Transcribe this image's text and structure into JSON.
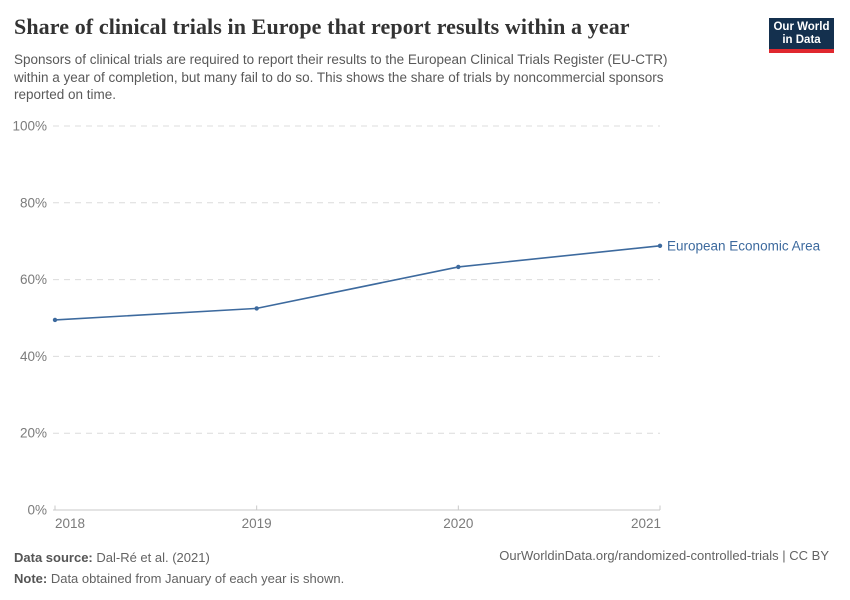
{
  "header": {
    "title": "Share of clinical trials in Europe that report results within a year",
    "subtitle_lines": [
      "Sponsors of clinical trials are required to report their results to the European Clinical Trials Register (EU-CTR)",
      "within a year of completion, but many fail to do so. This shows the share of trials by noncommercial sponsors",
      "reported on time."
    ],
    "logo": {
      "line1": "Our World",
      "line2": "in Data",
      "bg_color": "#14304e",
      "stripe_color": "#e0282e"
    }
  },
  "chart_data": {
    "type": "line",
    "title": "Share of clinical trials in Europe that report results within a year",
    "x": [
      2018,
      2019,
      2020,
      2021
    ],
    "series": [
      {
        "name": "European Economic Area",
        "values": [
          49.5,
          52.5,
          63.3,
          68.8
        ],
        "color": "#3d6a9e"
      }
    ],
    "xlabel": "",
    "ylabel": "",
    "ylim": [
      0,
      100
    ],
    "yticks": [
      0,
      20,
      40,
      60,
      80,
      100
    ],
    "ytick_suffix": "%",
    "grid": "horizontal-dashed",
    "legend_position": "end-of-line",
    "marker": "circle",
    "colors": {
      "gridline": "#dcdcdc",
      "axis_line": "#c9c9c9",
      "tick_label": "#7b7b7b"
    }
  },
  "footer": {
    "datasource_label": "Data source:",
    "datasource_value": " Dal-Ré et al. (2021)",
    "note_label": "Note:",
    "note_value": " Data obtained from January of each year is shown.",
    "attribution": "OurWorldinData.org/randomized-controlled-trials | CC BY"
  }
}
